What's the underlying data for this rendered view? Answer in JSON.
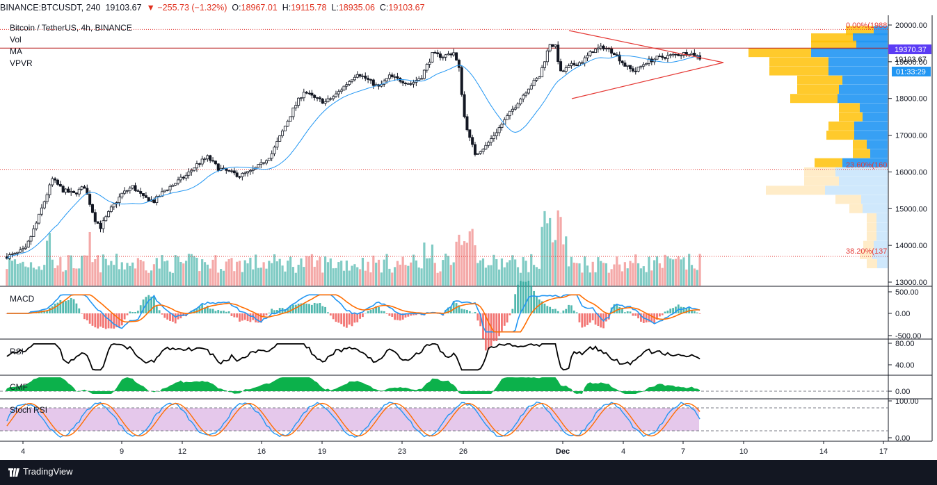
{
  "header": {
    "symbol": "BINANCE:BTCUSDT, 240",
    "last": "19103.67",
    "change": "▼ −255.73 (−1.32%)",
    "o_label": "O:",
    "o_value": "18967.01",
    "h_label": "H:",
    "h_value": "19115.78",
    "l_label": "L:",
    "l_value": "18935.06",
    "c_label": "C:",
    "c_value": "19103.67"
  },
  "legend": {
    "title": "Bitcoin / TetherUS, 4h, BINANCE",
    "vol": "Vol",
    "ma": "MA",
    "vpvr": "VPVR"
  },
  "panes": {
    "macd": "MACD",
    "rsi": "RSI",
    "cmf": "CMF",
    "stoch": "Stoch RSI"
  },
  "badges": {
    "level": "19370.37",
    "price": "19103.67",
    "countdown": "01:33:29"
  },
  "fib": {
    "f0": "0.00%(1988",
    "f236": "23.60%(160",
    "f382": "38.20%(137"
  },
  "footer": {
    "brand": "TradingView"
  },
  "colors": {
    "up": "#26a69a",
    "down": "#ef5350",
    "ma": "#2196f3",
    "macd_line": "#2196f3",
    "signal_line": "#ff6d00",
    "cmf_fill": "#0cb14b",
    "stoch_bg": "#e1bee7",
    "triangle": "#e53935",
    "fib": "#e53935"
  },
  "chart_data": {
    "type": "candlestick",
    "title": "Bitcoin / TetherUS, 4h, BINANCE",
    "y_axis": {
      "range": [
        12900,
        20100
      ],
      "ticks": [
        "20000.00",
        "19000.00",
        "18000.00",
        "17000.00",
        "16000.00",
        "15000.00",
        "14000.00",
        "13000.00"
      ],
      "tick_values": [
        20000,
        19000,
        18000,
        17000,
        16000,
        15000,
        14000,
        13000
      ]
    },
    "x_axis": {
      "labels": [
        "4",
        "9",
        "12",
        "16",
        "19",
        "23",
        "26",
        "Dec",
        "4",
        "7",
        "10",
        "14",
        "17"
      ]
    },
    "macd_axis": {
      "ticks": [
        "500.00",
        "0.00",
        "-500.00"
      ]
    },
    "rsi_axis": {
      "ticks": [
        "80.00",
        "40.00"
      ]
    },
    "cmf_axis": {
      "ticks": [
        "0.00"
      ]
    },
    "stoch_axis": {
      "ticks": [
        "100.00",
        "0.00"
      ]
    },
    "price_path": [
      [
        0,
        13690
      ],
      [
        4,
        13750
      ],
      [
        8,
        13900
      ],
      [
        12,
        14600
      ],
      [
        16,
        15400
      ],
      [
        18,
        15800
      ],
      [
        22,
        15500
      ],
      [
        26,
        15400
      ],
      [
        30,
        15600
      ],
      [
        34,
        14700
      ],
      [
        36,
        14500
      ],
      [
        40,
        15000
      ],
      [
        44,
        15400
      ],
      [
        48,
        15600
      ],
      [
        52,
        15300
      ],
      [
        56,
        15200
      ],
      [
        60,
        15500
      ],
      [
        64,
        15700
      ],
      [
        68,
        15900
      ],
      [
        72,
        16200
      ],
      [
        76,
        16400
      ],
      [
        80,
        16100
      ],
      [
        84,
        16000
      ],
      [
        88,
        15900
      ],
      [
        92,
        16000
      ],
      [
        96,
        16200
      ],
      [
        100,
        16500
      ],
      [
        104,
        17100
      ],
      [
        108,
        17700
      ],
      [
        112,
        18200
      ],
      [
        116,
        18000
      ],
      [
        120,
        17900
      ],
      [
        124,
        18100
      ],
      [
        128,
        18400
      ],
      [
        132,
        18700
      ],
      [
        136,
        18500
      ],
      [
        140,
        18300
      ],
      [
        144,
        18600
      ],
      [
        148,
        18500
      ],
      [
        152,
        18400
      ],
      [
        156,
        18600
      ],
      [
        160,
        19200
      ],
      [
        164,
        19150
      ],
      [
        168,
        19250
      ],
      [
        170,
        18800
      ],
      [
        172,
        17500
      ],
      [
        174,
        16900
      ],
      [
        176,
        16500
      ],
      [
        180,
        16700
      ],
      [
        184,
        17100
      ],
      [
        188,
        17500
      ],
      [
        192,
        17900
      ],
      [
        196,
        18300
      ],
      [
        200,
        18600
      ],
      [
        204,
        19500
      ],
      [
        206,
        19400
      ],
      [
        208,
        18700
      ],
      [
        212,
        18900
      ],
      [
        216,
        19000
      ],
      [
        220,
        19300
      ],
      [
        224,
        19400
      ],
      [
        228,
        19250
      ],
      [
        232,
        18900
      ],
      [
        234,
        18800
      ],
      [
        236,
        18750
      ],
      [
        240,
        19000
      ],
      [
        244,
        19100
      ],
      [
        248,
        19150
      ],
      [
        252,
        19200
      ],
      [
        256,
        19250
      ],
      [
        258,
        19200
      ],
      [
        260,
        19103
      ]
    ]
  }
}
